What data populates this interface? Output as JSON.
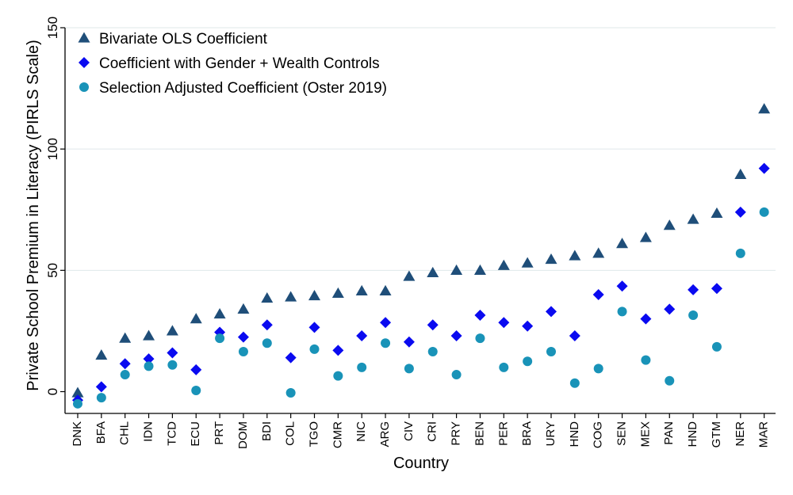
{
  "chart_data": {
    "type": "scatter",
    "title": "",
    "xlabel": "Country",
    "ylabel": "Private School Premium in Literacy (PIRLS Scale)",
    "ylim": [
      -8,
      150
    ],
    "yticks": [
      0,
      50,
      100,
      150
    ],
    "grid": true,
    "legend_position": "top-left",
    "categories": [
      "DNK",
      "BFA",
      "CHL",
      "IDN",
      "TCD",
      "ECU",
      "PRT",
      "DOM",
      "BDI",
      "COL",
      "TGO",
      "CMR",
      "NIC",
      "ARG",
      "CIV",
      "CRI",
      "PRY",
      "BEN",
      "PER",
      "BRA",
      "URY",
      "HND",
      "COG",
      "SEN",
      "MEX",
      "PAN",
      "HND",
      "GTM",
      "NER",
      "MAR"
    ],
    "series": [
      {
        "name": "Bivariate OLS Coefficient",
        "marker": "triangle",
        "color": "#1f4e79",
        "values": [
          -0.5,
          15,
          22,
          23,
          25,
          30,
          32,
          34,
          38.5,
          39,
          39.5,
          40.5,
          41.5,
          41.5,
          47.5,
          49,
          50,
          50,
          52,
          53,
          54.5,
          56,
          57,
          61,
          63.5,
          68.5,
          71,
          73.5,
          89.5,
          116.5
        ]
      },
      {
        "name": "Coefficient with Gender + Wealth Controls",
        "marker": "diamond",
        "color": "#0a0af0",
        "values": [
          -3.5,
          2,
          11.5,
          13.5,
          16,
          9,
          24.5,
          22.5,
          27.5,
          14,
          26.5,
          17,
          23,
          28.5,
          20.5,
          27.5,
          23,
          31.5,
          28.5,
          27,
          33,
          23,
          40,
          43.5,
          30,
          34,
          42,
          42.5,
          74,
          92
        ]
      },
      {
        "name": "Selection Adjusted Coefficient (Oster 2019)",
        "marker": "circle",
        "color": "#1993b8",
        "values": [
          -5,
          -2.5,
          7,
          10.5,
          11,
          0.5,
          22,
          16.5,
          20,
          -0.5,
          17.5,
          6.5,
          10,
          20,
          9.5,
          16.5,
          7,
          22,
          10,
          12.5,
          16.5,
          3.5,
          9.5,
          33,
          13,
          4.5,
          31.5,
          18.5,
          57,
          74
        ]
      }
    ]
  }
}
